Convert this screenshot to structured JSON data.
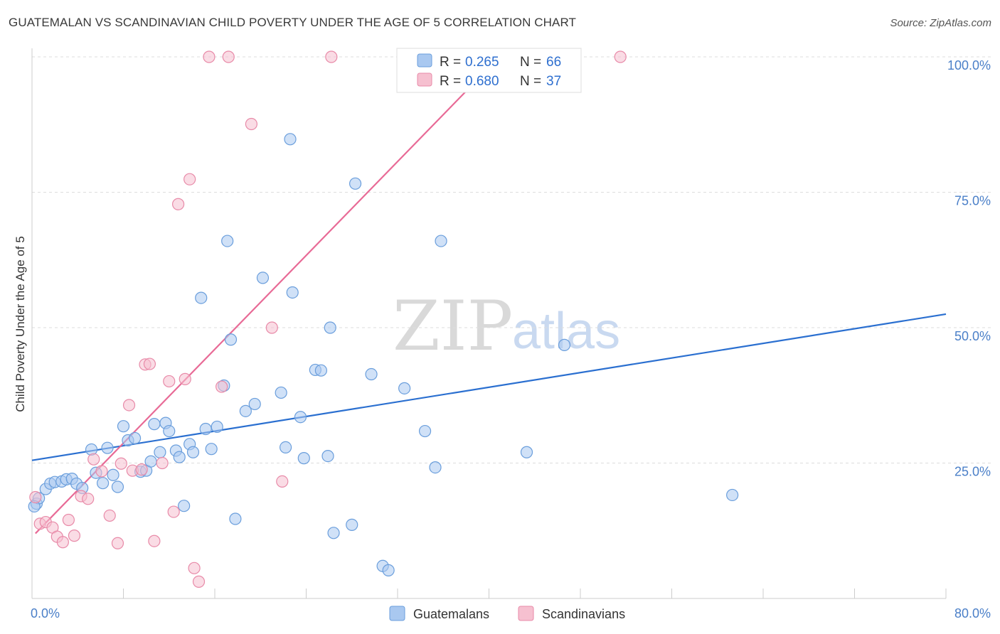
{
  "title": "GUATEMALAN VS SCANDINAVIAN CHILD POVERTY UNDER THE AGE OF 5 CORRELATION CHART",
  "source": "Source: ZipAtlas.com",
  "watermark": {
    "zip": "ZIP",
    "atlas": "atlas"
  },
  "colors": {
    "blue_fill": "#a9c8f0",
    "blue_stroke": "#6a9edc",
    "blue_line": "#2a6fd0",
    "pink_fill": "#f6c0d0",
    "pink_stroke": "#e88aa8",
    "pink_line": "#e86a96",
    "tick_text": "#4a7fc8",
    "grid": "#dddddd"
  },
  "chart_data": {
    "type": "scatter",
    "xlabel": "",
    "ylabel": "Child Poverty Under the Age of 5",
    "xlim": [
      0,
      80
    ],
    "ylim": [
      0,
      100
    ],
    "x_tick_labels": [
      "0.0%",
      "80.0%"
    ],
    "y_ticks": [
      25,
      50,
      75,
      100
    ],
    "y_tick_labels": [
      "25.0%",
      "50.0%",
      "75.0%",
      "100.0%"
    ],
    "legend": [
      {
        "series": "Guatemalans",
        "r_label": "R =",
        "r": "0.265",
        "n_label": "N =",
        "n": "66"
      },
      {
        "series": "Scandinavians",
        "r_label": "R =",
        "r": "0.680",
        "n_label": "N =",
        "n": "37"
      }
    ],
    "series": [
      {
        "name": "Guatemalans",
        "color": "#a9c8f0",
        "trend": {
          "x": [
            0,
            80
          ],
          "y": [
            25.5,
            52.5
          ]
        },
        "points": [
          [
            0.4,
            17.5
          ],
          [
            0.6,
            18.5
          ],
          [
            1.2,
            20.2
          ],
          [
            1.6,
            21.2
          ],
          [
            2.0,
            21.5
          ],
          [
            2.6,
            21.6
          ],
          [
            3.0,
            22.0
          ],
          [
            3.5,
            22.1
          ],
          [
            3.9,
            21.2
          ],
          [
            4.4,
            20.4
          ],
          [
            5.2,
            27.5
          ],
          [
            5.6,
            23.2
          ],
          [
            6.2,
            21.3
          ],
          [
            6.6,
            27.8
          ],
          [
            7.1,
            22.8
          ],
          [
            7.5,
            20.6
          ],
          [
            8.0,
            31.8
          ],
          [
            8.4,
            29.2
          ],
          [
            9.0,
            29.6
          ],
          [
            9.5,
            23.4
          ],
          [
            10.0,
            23.6
          ],
          [
            10.4,
            25.3
          ],
          [
            10.7,
            32.2
          ],
          [
            11.2,
            27.0
          ],
          [
            11.7,
            32.4
          ],
          [
            12.0,
            30.9
          ],
          [
            12.6,
            27.3
          ],
          [
            12.9,
            26.1
          ],
          [
            13.3,
            17.1
          ],
          [
            13.8,
            28.5
          ],
          [
            14.1,
            27.0
          ],
          [
            14.8,
            55.5
          ],
          [
            15.2,
            31.3
          ],
          [
            15.7,
            27.6
          ],
          [
            16.2,
            31.7
          ],
          [
            16.8,
            39.3
          ],
          [
            17.1,
            66.0
          ],
          [
            17.4,
            47.8
          ],
          [
            17.8,
            14.7
          ],
          [
            18.7,
            34.6
          ],
          [
            19.5,
            35.9
          ],
          [
            20.2,
            59.2
          ],
          [
            21.8,
            38.0
          ],
          [
            22.2,
            27.9
          ],
          [
            22.6,
            84.8
          ],
          [
            22.8,
            56.5
          ],
          [
            23.5,
            33.5
          ],
          [
            23.8,
            25.9
          ],
          [
            24.8,
            42.2
          ],
          [
            25.3,
            42.1
          ],
          [
            25.9,
            26.3
          ],
          [
            26.1,
            50.0
          ],
          [
            26.4,
            12.1
          ],
          [
            28.0,
            13.6
          ],
          [
            28.3,
            76.6
          ],
          [
            29.7,
            41.4
          ],
          [
            30.7,
            6.0
          ],
          [
            31.2,
            5.2
          ],
          [
            32.6,
            38.8
          ],
          [
            34.4,
            30.9
          ],
          [
            35.3,
            24.2
          ],
          [
            35.8,
            66.0
          ],
          [
            43.3,
            27.0
          ],
          [
            46.6,
            46.8
          ],
          [
            61.3,
            19.1
          ],
          [
            0.2,
            17.0
          ]
        ]
      },
      {
        "name": "Scandinavians",
        "color": "#f6c0d0",
        "trend": {
          "x": [
            0.3,
            40
          ],
          "y": [
            12.0,
            98.0
          ]
        },
        "points": [
          [
            0.3,
            18.7
          ],
          [
            0.7,
            13.8
          ],
          [
            1.2,
            14.1
          ],
          [
            1.8,
            13.1
          ],
          [
            2.2,
            11.4
          ],
          [
            2.7,
            10.4
          ],
          [
            3.2,
            14.5
          ],
          [
            3.7,
            11.6
          ],
          [
            4.3,
            18.9
          ],
          [
            4.9,
            18.4
          ],
          [
            5.4,
            25.7
          ],
          [
            6.1,
            23.5
          ],
          [
            6.8,
            15.3
          ],
          [
            7.5,
            10.2
          ],
          [
            7.8,
            24.9
          ],
          [
            8.5,
            35.7
          ],
          [
            8.8,
            23.6
          ],
          [
            9.6,
            23.8
          ],
          [
            9.9,
            43.2
          ],
          [
            10.3,
            43.3
          ],
          [
            10.7,
            10.6
          ],
          [
            11.4,
            25.0
          ],
          [
            12.0,
            40.1
          ],
          [
            12.4,
            16.0
          ],
          [
            12.8,
            72.8
          ],
          [
            13.4,
            40.5
          ],
          [
            13.8,
            77.4
          ],
          [
            14.2,
            5.6
          ],
          [
            14.6,
            3.1
          ],
          [
            15.5,
            100.0
          ],
          [
            16.6,
            39.1
          ],
          [
            17.2,
            100.0
          ],
          [
            19.2,
            87.6
          ],
          [
            21.0,
            50.0
          ],
          [
            21.9,
            21.6
          ],
          [
            26.2,
            100.0
          ],
          [
            51.5,
            100.0
          ]
        ]
      }
    ]
  }
}
